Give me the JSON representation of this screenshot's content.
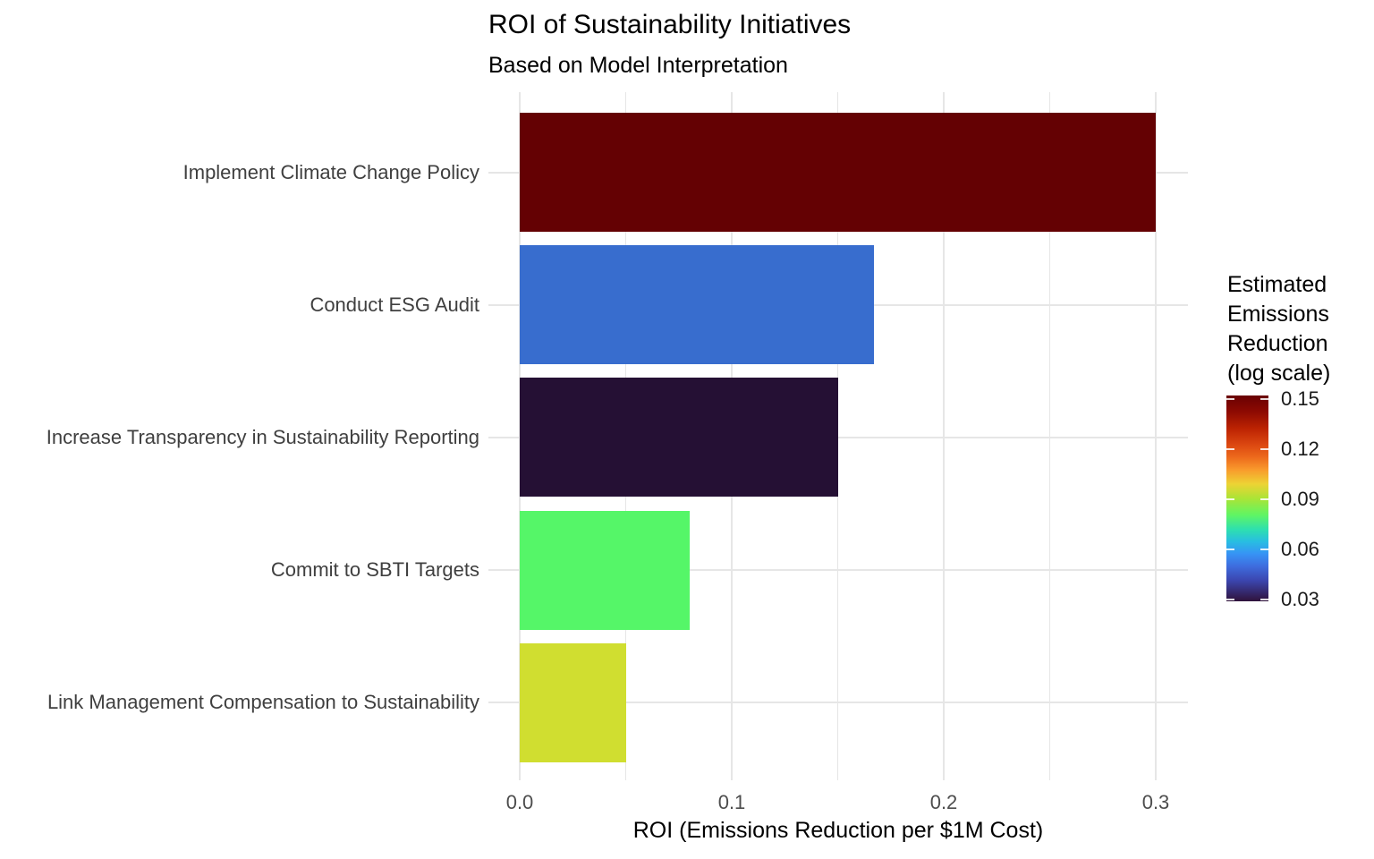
{
  "title": "ROI of Sustainability Initiatives",
  "subtitle": "Based on Model Interpretation",
  "chart_data": {
    "type": "bar",
    "orientation": "horizontal",
    "title": "ROI of Sustainability Initiatives",
    "subtitle": "Based on Model Interpretation",
    "xlabel": "ROI (Emissions Reduction per $1M Cost)",
    "categories": [
      "Implement Climate Change Policy",
      "Conduct ESG Audit",
      "Increase Transparency in Sustainability Reporting",
      "Commit to SBTI Targets",
      "Link Management Compensation to Sustainability"
    ],
    "values": [
      0.3,
      0.167,
      0.15,
      0.08,
      0.05
    ],
    "bar_colors": [
      "#640103",
      "#386DCE",
      "#251034",
      "#55F668",
      "#D0DE30"
    ],
    "xlim": [
      -0.015,
      0.315
    ],
    "x_major_ticks": [
      0.0,
      0.1,
      0.2,
      0.3
    ],
    "x_tick_labels": [
      "0.0",
      "0.1",
      "0.2",
      "0.3"
    ],
    "x_minor_ticks": [
      0.05,
      0.15,
      0.25
    ],
    "grid": "on",
    "gridline_color": "#e6e6e6",
    "legend": {
      "position": "right",
      "style": "colorbar",
      "title_lines": [
        "Estimated",
        "Emissions",
        "Reduction",
        "(log scale)"
      ],
      "tick_labels": [
        "0.15",
        "0.12",
        "0.09",
        "0.06",
        "0.03"
      ],
      "colormap": "turbo-reversed",
      "gradient_stops": [
        {
          "pos": 0,
          "color": "#690103"
        },
        {
          "pos": 8,
          "color": "#8E0A02"
        },
        {
          "pos": 16,
          "color": "#BC2302"
        },
        {
          "pos": 24,
          "color": "#DC4811"
        },
        {
          "pos": 30,
          "color": "#ED6A1C"
        },
        {
          "pos": 36,
          "color": "#F99A2C"
        },
        {
          "pos": 43,
          "color": "#EDD334"
        },
        {
          "pos": 50,
          "color": "#ABE436"
        },
        {
          "pos": 58,
          "color": "#60F563"
        },
        {
          "pos": 65,
          "color": "#2EE0AE"
        },
        {
          "pos": 71,
          "color": "#28BDE2"
        },
        {
          "pos": 77,
          "color": "#3793F5"
        },
        {
          "pos": 83,
          "color": "#3E6CDE"
        },
        {
          "pos": 90,
          "color": "#3B45AE"
        },
        {
          "pos": 100,
          "color": "#30123B"
        }
      ]
    }
  }
}
